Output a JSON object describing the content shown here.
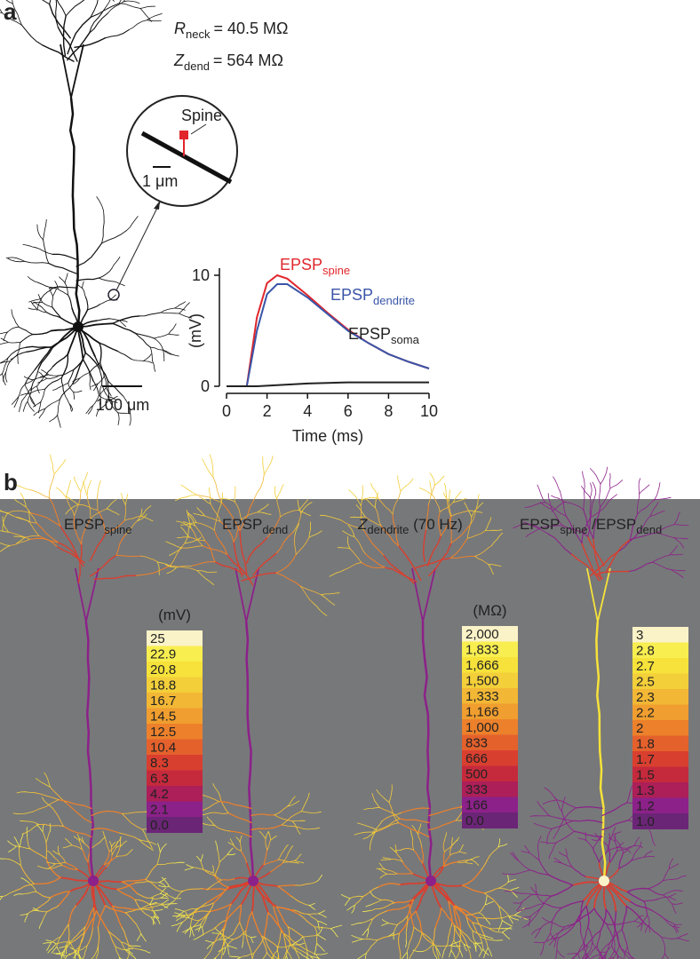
{
  "panel_a": {
    "label": "a",
    "rneck": {
      "symbol": "R",
      "subscript": "neck",
      "value": "= 40.5 MΩ"
    },
    "zdend": {
      "symbol": "Z",
      "subscript": "dend",
      "value": "= 564 MΩ"
    },
    "inset_label": "Spine",
    "inset_scale": "1 μm",
    "scale_bar": "100 μm"
  },
  "chart_data": {
    "type": "line",
    "xlabel": "Time (ms)",
    "ylabel": "(mV)",
    "x": [
      0,
      1,
      1.5,
      2,
      2.5,
      3,
      4,
      5,
      6,
      7,
      8,
      9,
      10
    ],
    "xlim": [
      0,
      10
    ],
    "xticks": [
      0,
      2,
      4,
      6,
      8,
      10
    ],
    "ylim": [
      0,
      10
    ],
    "yticks": [
      0,
      10
    ],
    "series": [
      {
        "name": "EPSP",
        "name_sub": "spine",
        "color": "#e0262b",
        "values": [
          0,
          0,
          6.2,
          9.3,
          10,
          9.7,
          8.2,
          6.6,
          5.1,
          3.9,
          2.9,
          2.2,
          1.6
        ]
      },
      {
        "name": "EPSP",
        "name_sub": "dendrite",
        "color": "#3a55a8",
        "values": [
          0,
          0,
          5.0,
          8.3,
          9.2,
          9.2,
          8.0,
          6.5,
          5.0,
          3.9,
          2.9,
          2.2,
          1.6
        ]
      },
      {
        "name": "EPSP",
        "name_sub": "soma",
        "color": "#222222",
        "values": [
          0,
          0,
          0,
          0.05,
          0.1,
          0.15,
          0.25,
          0.3,
          0.35,
          0.35,
          0.35,
          0.35,
          0.35
        ]
      }
    ]
  },
  "panel_b": {
    "label": "b",
    "colormap": [
      "#fbf3c8",
      "#f8ee50",
      "#f6e23a",
      "#f3cf3a",
      "#f2b735",
      "#f09e2f",
      "#ec802b",
      "#e4612c",
      "#d93f2f",
      "#c52a3c",
      "#ac1f58",
      "#8c2189",
      "#6b2576"
    ],
    "titles": [
      [
        {
          "text": "EPSP"
        },
        {
          "sub": "spine"
        }
      ],
      [
        {
          "text": "EPSP"
        },
        {
          "sub": "dend"
        }
      ],
      [
        {
          "italic": "Z"
        },
        {
          "sub": "dendrite"
        },
        {
          "text": " (70 Hz)"
        }
      ],
      [
        {
          "text": "EPSP"
        },
        {
          "sub": "spine"
        },
        {
          "text": " /EPSP"
        },
        {
          "sub": "dend"
        }
      ]
    ],
    "colorbars": [
      {
        "unit": "(mV)",
        "labels": [
          "25",
          "22.9",
          "20.8",
          "18.8",
          "16.7",
          "14.5",
          "12.5",
          "10.4",
          "8.3",
          "6.3",
          "4.2",
          "2.1",
          "0.0"
        ]
      },
      {
        "unit": "(MΩ)",
        "labels": [
          "2,000",
          "1,833",
          "1,666",
          "1,500",
          "1,333",
          "1,166",
          "1,000",
          "833",
          "666",
          "500",
          "333",
          "166",
          "0.0"
        ]
      },
      {
        "labels": [
          "3",
          "2.8",
          "2.7",
          "2.5",
          "2.3",
          "2.2",
          "2",
          "1.8",
          "1.7",
          "1.5",
          "1.3",
          "1.2",
          "1.0"
        ]
      }
    ]
  }
}
